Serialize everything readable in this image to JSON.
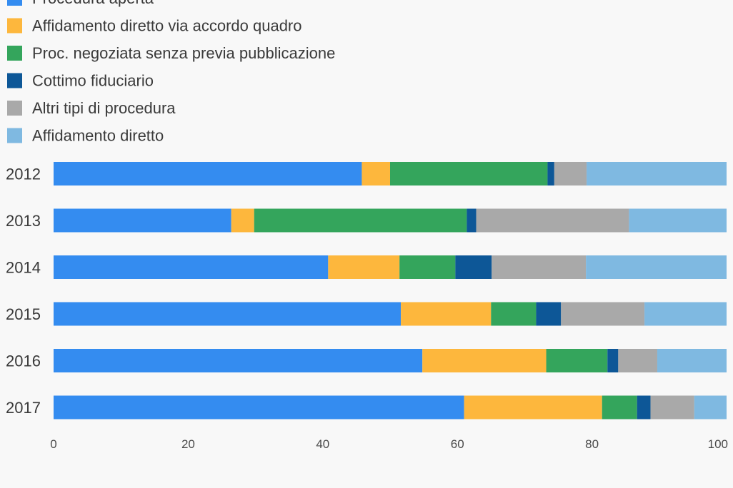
{
  "chart_data": {
    "type": "bar",
    "orientation": "horizontal",
    "stacked": true,
    "categories": [
      "2012",
      "2013",
      "2014",
      "2015",
      "2016",
      "2017"
    ],
    "series": [
      {
        "name": "Procedura aperta",
        "color": "#348cf0",
        "values": [
          45.8,
          26.4,
          40.8,
          51.6,
          54.8,
          61.0
        ]
      },
      {
        "name": "Affidamento diretto via accordo quadro",
        "color": "#fdb73d",
        "values": [
          4.2,
          3.4,
          10.6,
          13.4,
          18.4,
          20.5
        ]
      },
      {
        "name": "Proc. negoziata senza previa pubblicazione",
        "color": "#34a55c",
        "values": [
          23.4,
          31.6,
          8.3,
          6.7,
          9.1,
          5.2
        ]
      },
      {
        "name": "Cottimo fiduciario",
        "color": "#0d5797",
        "values": [
          1.0,
          1.4,
          5.4,
          3.7,
          1.6,
          2.0
        ]
      },
      {
        "name": "Altri tipi di procedura",
        "color": "#a9a9a9",
        "values": [
          4.8,
          22.7,
          14.0,
          12.4,
          5.8,
          6.5
        ]
      },
      {
        "name": "Affidamento diretto",
        "color": "#7fb9e1",
        "values": [
          20.8,
          14.5,
          20.9,
          12.2,
          10.3,
          4.8
        ]
      }
    ],
    "xticks": [
      0,
      20,
      40,
      60,
      80,
      100
    ],
    "xlim": [
      0,
      100
    ],
    "title": "",
    "xlabel": "",
    "ylabel": "",
    "grid": false,
    "legend_position": "top-left"
  }
}
